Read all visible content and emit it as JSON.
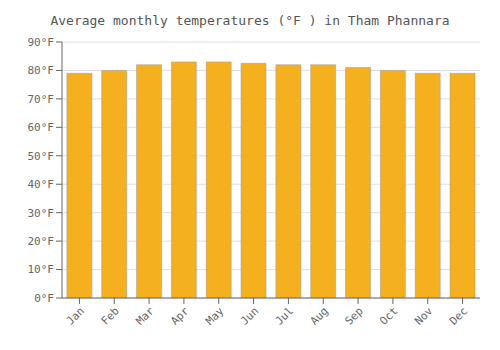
{
  "chart_data": {
    "type": "bar",
    "title": "Average monthly temperatures (°F ) in Tham Phannara",
    "categories": [
      "Jan",
      "Feb",
      "Mar",
      "Apr",
      "May",
      "Jun",
      "Jul",
      "Aug",
      "Sep",
      "Oct",
      "Nov",
      "Dec"
    ],
    "values": [
      79,
      80,
      82,
      83,
      83,
      82.5,
      82,
      82,
      81,
      80,
      79,
      79
    ],
    "color": "#F5B020",
    "ylim": [
      0,
      90
    ],
    "yticks": [
      {
        "value": 0,
        "label": "0°F"
      },
      {
        "value": 10,
        "label": "10°F"
      },
      {
        "value": 20,
        "label": "20°F"
      },
      {
        "value": 30,
        "label": "30°F"
      },
      {
        "value": 40,
        "label": "40°F"
      },
      {
        "value": 50,
        "label": "50°F"
      },
      {
        "value": 60,
        "label": "60°F"
      },
      {
        "value": 70,
        "label": "70°F"
      },
      {
        "value": 80,
        "label": "80°F"
      },
      {
        "value": 90,
        "label": "90°F"
      }
    ],
    "grid": true
  }
}
